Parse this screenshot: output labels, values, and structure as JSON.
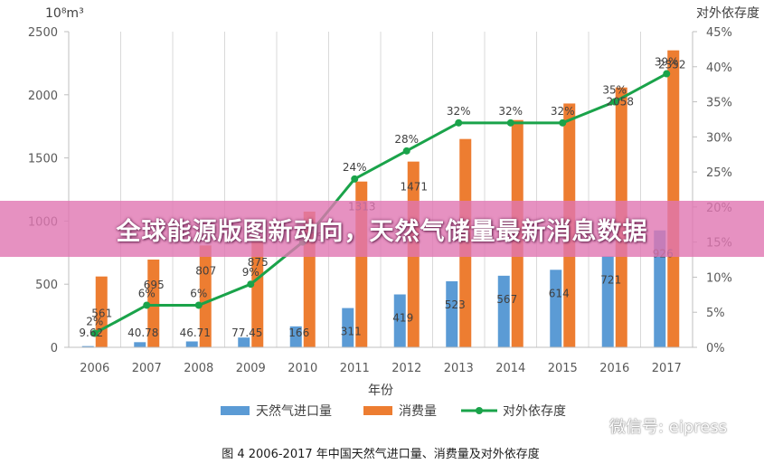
{
  "banner": {
    "title": "全球能源版图新动向，天然气储量最新消息数据"
  },
  "watermark": {
    "text": "微信号: eipress"
  },
  "chart_data": {
    "type": "bar",
    "categories": [
      "2006",
      "2007",
      "2008",
      "2009",
      "2010",
      "2011",
      "2012",
      "2013",
      "2014",
      "2015",
      "2016",
      "2017"
    ],
    "series": [
      {
        "name": "天然气进口量",
        "kind": "bar",
        "axis": "left",
        "color": "#5b9bd5",
        "values": [
          9.62,
          40.78,
          46.71,
          77.45,
          166,
          311,
          419,
          523,
          567,
          614,
          721,
          926
        ],
        "labels": [
          "9.62",
          "40.78",
          "46.71",
          "77.45",
          "166",
          "311",
          "419",
          "523",
          "567",
          "614",
          "721",
          "926"
        ]
      },
      {
        "name": "消费量",
        "kind": "bar",
        "axis": "left",
        "color": "#ed7d31",
        "values": [
          561,
          695,
          807,
          875,
          1075,
          1313,
          1471,
          1650,
          1800,
          1931,
          2058,
          2352
        ],
        "labels": [
          "561",
          "695",
          "807",
          "875",
          "1075",
          "1313",
          "1471",
          "",
          "",
          "",
          "2058",
          "2352"
        ]
      },
      {
        "name": "对外依存度",
        "kind": "line",
        "axis": "right",
        "color": "#1aa34a",
        "values": [
          2,
          6,
          6,
          9,
          15,
          24,
          28,
          32,
          32,
          32,
          35,
          39
        ],
        "labels": [
          "2%",
          "6%",
          "6%",
          "9%",
          "",
          "24%",
          "28%",
          "32%",
          "32%",
          "32%",
          "35%",
          "39%"
        ]
      }
    ],
    "left_axis": {
      "unit": "10⁸m³",
      "ylim": [
        0,
        2500
      ],
      "ticks": [
        "0",
        "500",
        "1000",
        "1500",
        "2000",
        "2500"
      ]
    },
    "right_axis": {
      "unit": "对外依存度",
      "ylim": [
        0,
        45
      ],
      "ticks": [
        "0%",
        "5%",
        "10%",
        "15%",
        "20%",
        "25%",
        "30%",
        "35%",
        "40%",
        "45%"
      ]
    },
    "xlabel": "年份",
    "grid": "vertical",
    "legend": {
      "placement": "bottom",
      "items": [
        "天然气进口量",
        "消费量",
        "对外依存度"
      ]
    },
    "caption": "图 4    2006-2017 年中国天然气进口量、消费量及对外依存度"
  }
}
